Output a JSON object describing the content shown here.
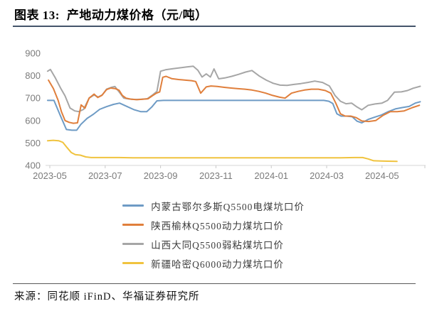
{
  "figure": {
    "label": "图表 13:",
    "title": "产地动力煤价格（元/吨）"
  },
  "source": {
    "text": "来源：同花顺 iFinD、华福证券研究所"
  },
  "chart_data": {
    "type": "line",
    "title": "产地动力煤价格（元/吨）",
    "xlabel": "",
    "ylabel": "",
    "grid": false,
    "legend_position": "bottom",
    "ylim": [
      400,
      900
    ],
    "y_ticks": [
      400,
      500,
      600,
      700,
      800,
      900
    ],
    "x_unit": "months since 2023-05",
    "x_tick_months": [
      0,
      2,
      4,
      6,
      8,
      10,
      12
    ],
    "x_tick_labels": [
      "2023-05",
      "2023-07",
      "2023-09",
      "2023-11",
      "2024-01",
      "2024-03",
      "2024-05"
    ],
    "series": [
      {
        "name": "内蒙古鄂尔多斯Q5500电煤坑口价",
        "color": "#6E9BC5",
        "points": [
          [
            -0.08,
            690
          ],
          [
            0.15,
            690
          ],
          [
            0.38,
            622
          ],
          [
            0.6,
            560
          ],
          [
            0.8,
            557
          ],
          [
            0.97,
            557
          ],
          [
            1.12,
            583
          ],
          [
            1.35,
            610
          ],
          [
            1.57,
            628
          ],
          [
            1.8,
            650
          ],
          [
            2.05,
            662
          ],
          [
            2.3,
            672
          ],
          [
            2.52,
            678
          ],
          [
            2.8,
            662
          ],
          [
            3.05,
            648
          ],
          [
            3.28,
            640
          ],
          [
            3.5,
            640
          ],
          [
            3.68,
            660
          ],
          [
            3.87,
            688
          ],
          [
            4.1,
            690
          ],
          [
            4.55,
            690
          ],
          [
            5.0,
            690
          ],
          [
            5.45,
            690
          ],
          [
            5.9,
            690
          ],
          [
            6.35,
            690
          ],
          [
            6.8,
            690
          ],
          [
            7.25,
            690
          ],
          [
            7.7,
            690
          ],
          [
            8.15,
            690
          ],
          [
            8.6,
            690
          ],
          [
            9.05,
            690
          ],
          [
            9.5,
            690
          ],
          [
            9.9,
            690
          ],
          [
            10.08,
            686
          ],
          [
            10.22,
            676
          ],
          [
            10.37,
            630
          ],
          [
            10.52,
            620
          ],
          [
            10.72,
            620
          ],
          [
            10.92,
            617
          ],
          [
            11.1,
            597
          ],
          [
            11.27,
            590
          ],
          [
            11.5,
            605
          ],
          [
            11.73,
            615
          ],
          [
            11.98,
            625
          ],
          [
            12.23,
            640
          ],
          [
            12.48,
            652
          ],
          [
            12.73,
            658
          ],
          [
            12.98,
            663
          ],
          [
            13.2,
            678
          ],
          [
            13.38,
            684
          ]
        ]
      },
      {
        "name": "陕西榆林Q5500动力煤坑口价",
        "color": "#E07F3C",
        "points": [
          [
            -0.05,
            780
          ],
          [
            0.13,
            742
          ],
          [
            0.3,
            690
          ],
          [
            0.42,
            640
          ],
          [
            0.55,
            600
          ],
          [
            0.7,
            592
          ],
          [
            0.85,
            588
          ],
          [
            1.0,
            590
          ],
          [
            1.13,
            670
          ],
          [
            1.27,
            655
          ],
          [
            1.42,
            700
          ],
          [
            1.6,
            718
          ],
          [
            1.73,
            703
          ],
          [
            1.88,
            712
          ],
          [
            2.05,
            738
          ],
          [
            2.2,
            745
          ],
          [
            2.37,
            742
          ],
          [
            2.5,
            735
          ],
          [
            2.62,
            712
          ],
          [
            2.75,
            700
          ],
          [
            2.95,
            695
          ],
          [
            3.15,
            693
          ],
          [
            3.35,
            695
          ],
          [
            3.55,
            697
          ],
          [
            3.7,
            710
          ],
          [
            3.85,
            722
          ],
          [
            3.97,
            728
          ],
          [
            4.08,
            793
          ],
          [
            4.2,
            797
          ],
          [
            4.4,
            787
          ],
          [
            4.65,
            783
          ],
          [
            4.9,
            780
          ],
          [
            5.12,
            778
          ],
          [
            5.27,
            774
          ],
          [
            5.45,
            722
          ],
          [
            5.65,
            750
          ],
          [
            5.82,
            754
          ],
          [
            6.05,
            752
          ],
          [
            6.3,
            748
          ],
          [
            6.55,
            745
          ],
          [
            6.8,
            742
          ],
          [
            7.05,
            740
          ],
          [
            7.3,
            736
          ],
          [
            7.55,
            730
          ],
          [
            7.8,
            722
          ],
          [
            8.05,
            712
          ],
          [
            8.3,
            704
          ],
          [
            8.5,
            700
          ],
          [
            8.73,
            722
          ],
          [
            8.97,
            730
          ],
          [
            9.2,
            736
          ],
          [
            9.45,
            740
          ],
          [
            9.7,
            740
          ],
          [
            9.95,
            734
          ],
          [
            10.15,
            722
          ],
          [
            10.33,
            678
          ],
          [
            10.5,
            630
          ],
          [
            10.67,
            620
          ],
          [
            10.87,
            620
          ],
          [
            11.07,
            613
          ],
          [
            11.27,
            598
          ],
          [
            11.52,
            596
          ],
          [
            11.77,
            600
          ],
          [
            12.05,
            624
          ],
          [
            12.3,
            640
          ],
          [
            12.55,
            640
          ],
          [
            12.8,
            643
          ],
          [
            13.1,
            658
          ],
          [
            13.35,
            668
          ]
        ]
      },
      {
        "name": "山西大同Q5500弱粘煤坑口价",
        "color": "#A6A6A6",
        "points": [
          [
            -0.08,
            820
          ],
          [
            0.02,
            828
          ],
          [
            0.2,
            790
          ],
          [
            0.4,
            742
          ],
          [
            0.55,
            710
          ],
          [
            0.73,
            656
          ],
          [
            0.9,
            643
          ],
          [
            1.05,
            640
          ],
          [
            1.22,
            650
          ],
          [
            1.42,
            700
          ],
          [
            1.6,
            714
          ],
          [
            1.75,
            705
          ],
          [
            1.9,
            715
          ],
          [
            2.05,
            740
          ],
          [
            2.22,
            748
          ],
          [
            2.35,
            752
          ],
          [
            2.52,
            725
          ],
          [
            2.67,
            700
          ],
          [
            2.87,
            696
          ],
          [
            3.1,
            694
          ],
          [
            3.32,
            695
          ],
          [
            3.52,
            697
          ],
          [
            3.72,
            715
          ],
          [
            3.87,
            730
          ],
          [
            4.0,
            820
          ],
          [
            4.2,
            827
          ],
          [
            4.45,
            831
          ],
          [
            4.7,
            835
          ],
          [
            4.95,
            839
          ],
          [
            5.18,
            842
          ],
          [
            5.35,
            824
          ],
          [
            5.5,
            794
          ],
          [
            5.65,
            808
          ],
          [
            5.8,
            794
          ],
          [
            5.93,
            830
          ],
          [
            6.1,
            786
          ],
          [
            6.32,
            790
          ],
          [
            6.57,
            797
          ],
          [
            6.82,
            806
          ],
          [
            7.07,
            816
          ],
          [
            7.3,
            823
          ],
          [
            7.57,
            798
          ],
          [
            7.82,
            780
          ],
          [
            8.07,
            766
          ],
          [
            8.32,
            758
          ],
          [
            8.57,
            757
          ],
          [
            8.82,
            761
          ],
          [
            9.07,
            765
          ],
          [
            9.32,
            770
          ],
          [
            9.57,
            776
          ],
          [
            9.85,
            770
          ],
          [
            10.1,
            754
          ],
          [
            10.3,
            712
          ],
          [
            10.5,
            686
          ],
          [
            10.7,
            675
          ],
          [
            10.9,
            678
          ],
          [
            11.1,
            660
          ],
          [
            11.27,
            648
          ],
          [
            11.5,
            668
          ],
          [
            11.75,
            674
          ],
          [
            12.0,
            678
          ],
          [
            12.2,
            690
          ],
          [
            12.45,
            727
          ],
          [
            12.7,
            728
          ],
          [
            12.92,
            734
          ],
          [
            13.12,
            744
          ],
          [
            13.38,
            753
          ]
        ]
      },
      {
        "name": "新疆哈密Q6000动力煤坑口价",
        "color": "#F0C33E",
        "points": [
          [
            -0.08,
            510
          ],
          [
            0.12,
            512
          ],
          [
            0.32,
            510
          ],
          [
            0.47,
            503
          ],
          [
            0.62,
            480
          ],
          [
            0.77,
            458
          ],
          [
            0.92,
            448
          ],
          [
            1.1,
            446
          ],
          [
            1.3,
            438
          ],
          [
            1.5,
            435
          ],
          [
            2.0,
            435
          ],
          [
            2.5,
            435
          ],
          [
            3.0,
            434
          ],
          [
            3.5,
            434
          ],
          [
            4.0,
            434
          ],
          [
            4.5,
            434
          ],
          [
            5.0,
            434
          ],
          [
            5.5,
            434
          ],
          [
            6.0,
            434
          ],
          [
            6.5,
            434
          ],
          [
            7.0,
            434
          ],
          [
            7.5,
            434
          ],
          [
            8.0,
            434
          ],
          [
            8.5,
            434
          ],
          [
            9.0,
            434
          ],
          [
            9.5,
            434
          ],
          [
            10.0,
            434
          ],
          [
            10.5,
            434
          ],
          [
            11.0,
            435
          ],
          [
            11.3,
            435
          ],
          [
            11.5,
            429
          ],
          [
            11.7,
            421
          ],
          [
            11.95,
            420
          ],
          [
            12.2,
            419
          ],
          [
            12.54,
            418
          ]
        ]
      }
    ]
  }
}
